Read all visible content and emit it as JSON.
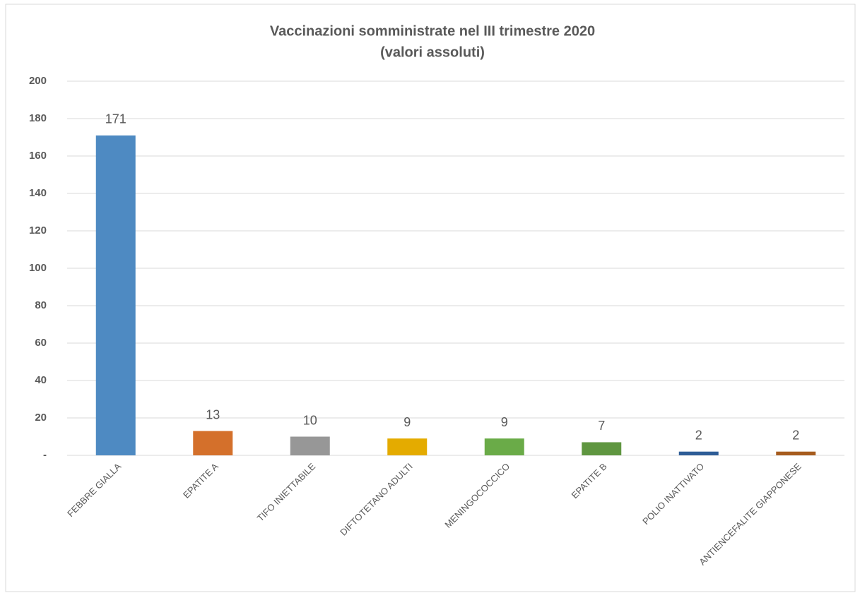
{
  "chart_data": {
    "type": "bar",
    "title": "Vaccinazioni somministrate nel III trimestre 2020",
    "subtitle": "(valori assoluti)",
    "categories": [
      "FEBBRE GIALLA",
      "EPATITE A",
      "TIFO INIETTABILE",
      "DIFTOTETANO ADULTI",
      "MENINGOCOCCICO",
      "EPATITE B",
      "POLIO INATTIVATO",
      "ANTIENCEFALITE GIAPPONESE"
    ],
    "values": [
      171,
      13,
      10,
      9,
      9,
      7,
      2,
      2
    ],
    "colors": [
      "#4e8ac2",
      "#d4702b",
      "#979797",
      "#e4ab00",
      "#6aab48",
      "#5f9640",
      "#2e5d97",
      "#a65c1e"
    ],
    "ylim": [
      0,
      200
    ],
    "yticks": [
      {
        "value": 0,
        "label": "-"
      },
      20,
      40,
      60,
      80,
      100,
      120,
      140,
      160,
      180,
      200
    ],
    "grid": true
  }
}
